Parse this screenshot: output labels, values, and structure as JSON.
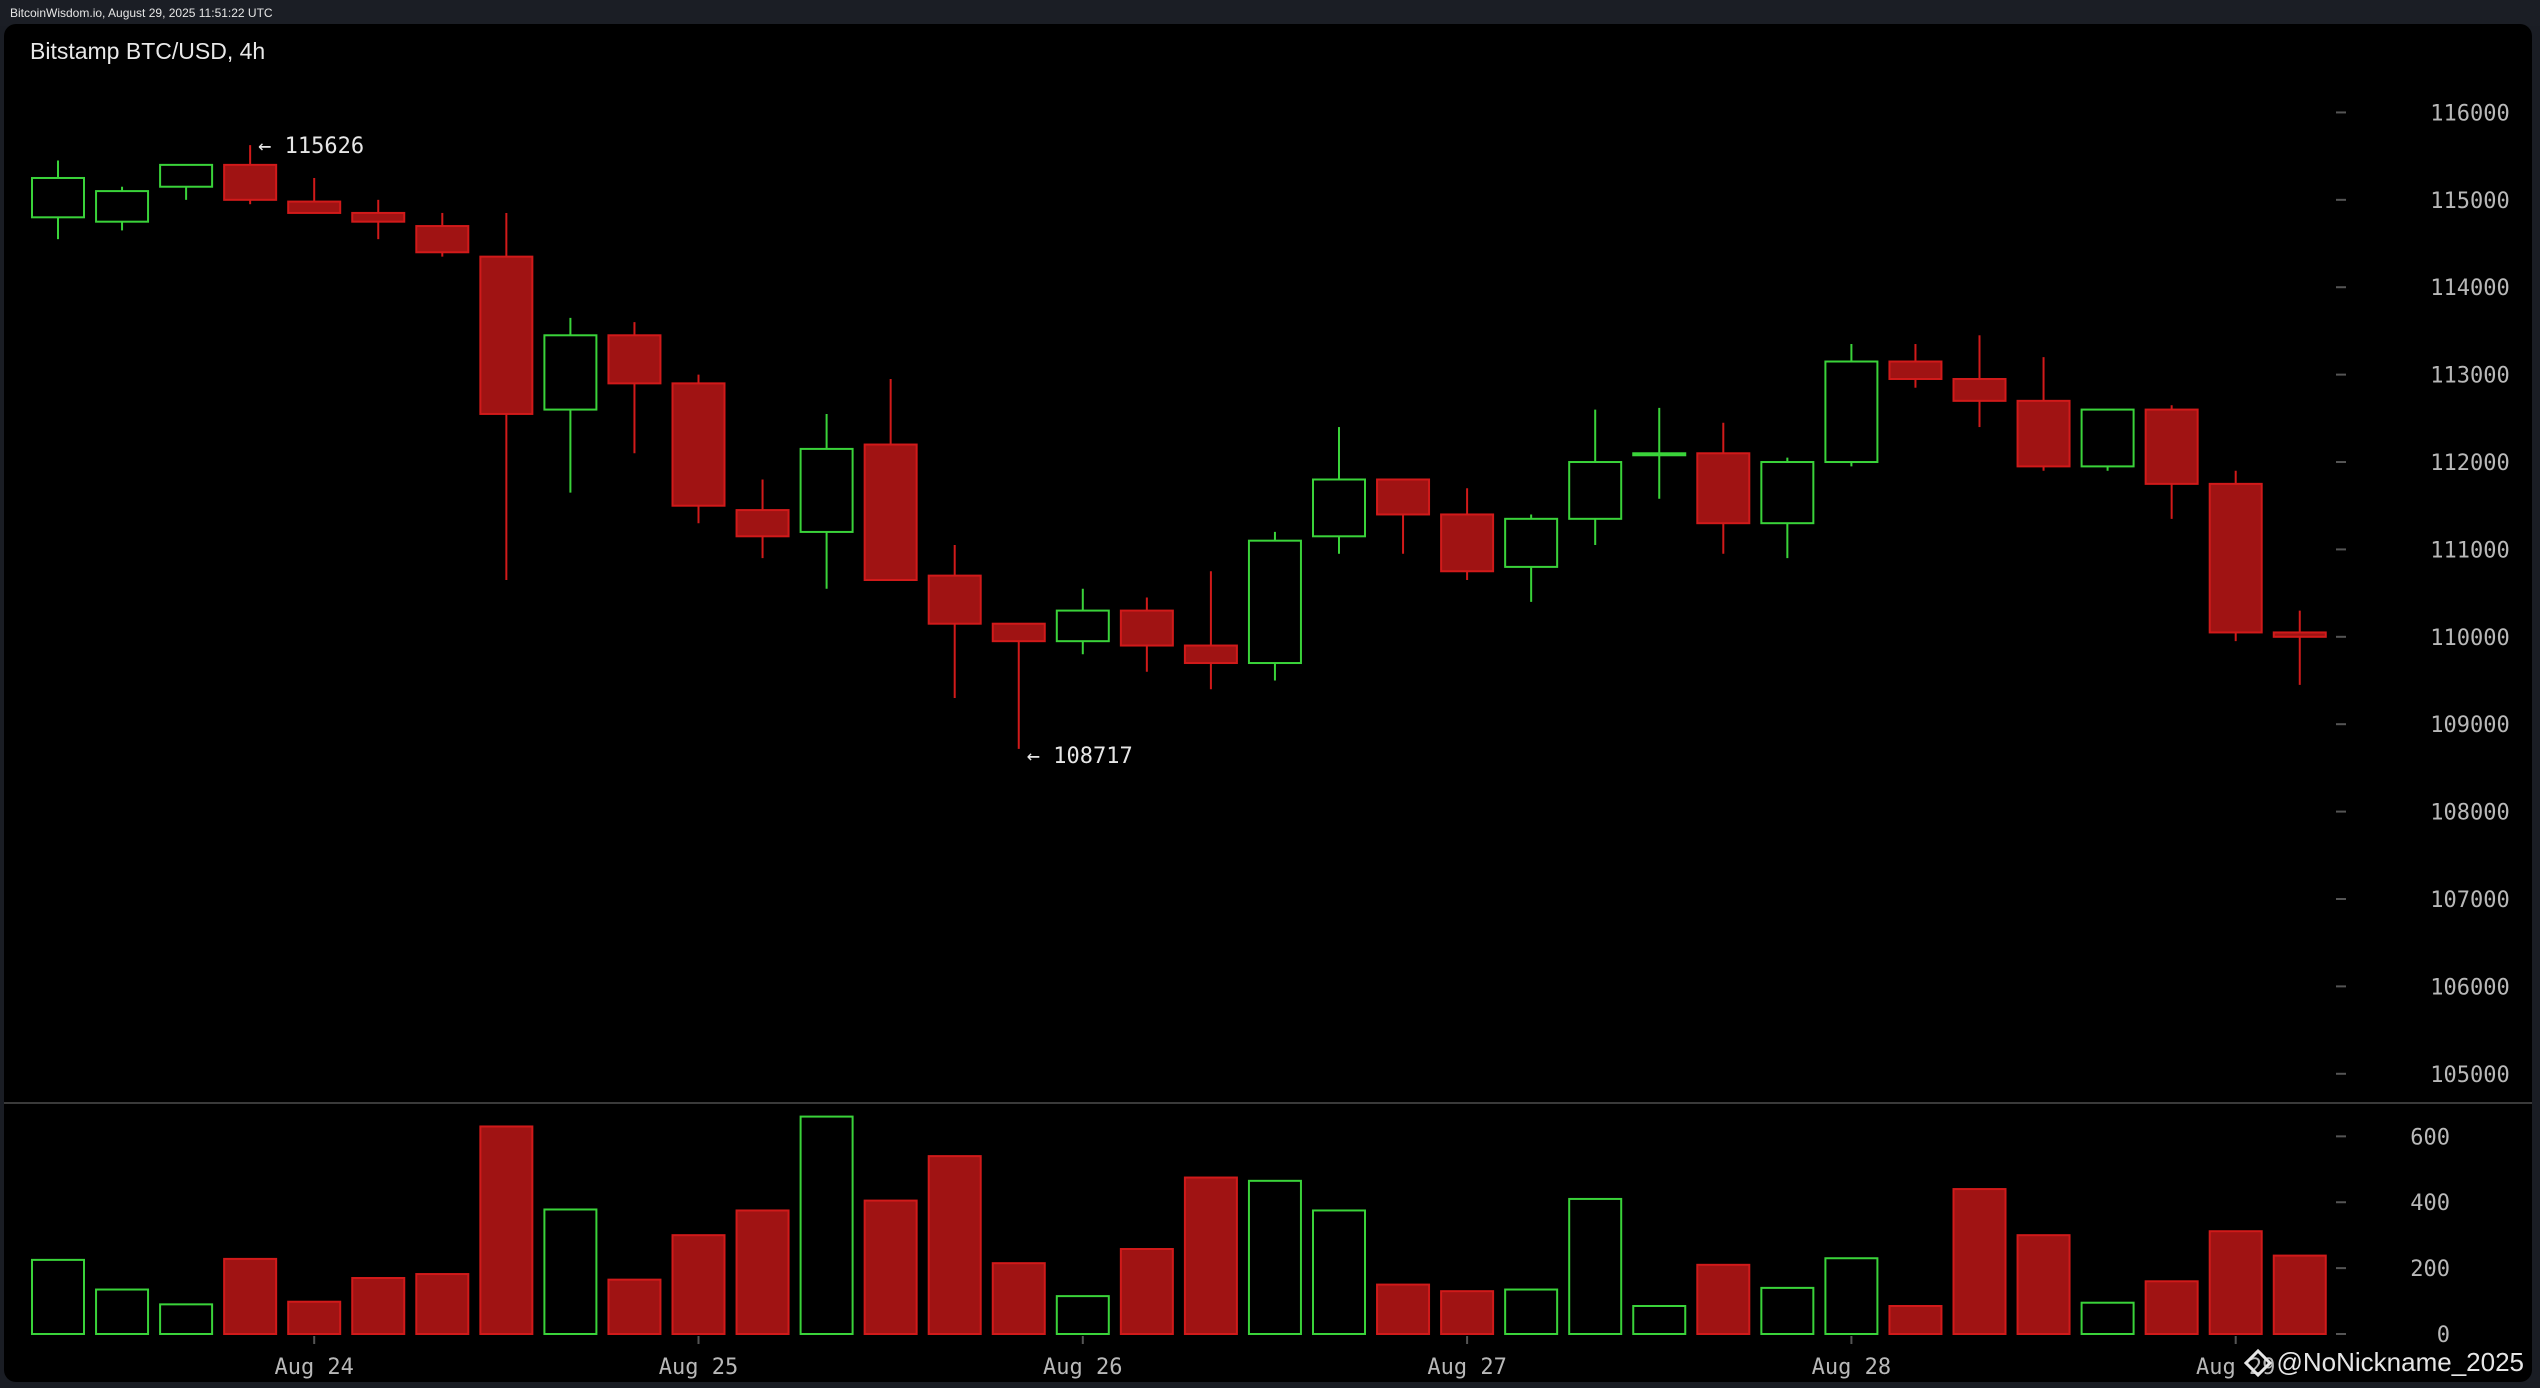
{
  "header": {
    "source": "BitcoinWisdom.io, August 29, 2025 11:51:22 UTC",
    "title": "Bitstamp BTC/USD, 4h"
  },
  "watermark": "@NoNickname_2025",
  "colors": {
    "up": "#3ad33a",
    "down": "#a01313",
    "down_border": "#d11a1a",
    "axis_text": "#b8b8b8",
    "background": "#000000"
  },
  "chart_data": {
    "type": "candlestick",
    "title": "Bitstamp BTC/USD, 4h",
    "x_ticks": [
      "Aug 24",
      "Aug 25",
      "Aug 26",
      "Aug 27",
      "Aug 28",
      "Aug 29"
    ],
    "x_tick_candle_index": [
      4,
      10,
      16,
      22,
      28,
      34
    ],
    "price_axis": {
      "ticks": [
        105000,
        106000,
        107000,
        108000,
        109000,
        110000,
        111000,
        112000,
        113000,
        114000,
        115000,
        116000
      ],
      "ylim": [
        104700,
        116600
      ]
    },
    "volume_axis": {
      "ticks": [
        0,
        200,
        400,
        600
      ],
      "ylim": [
        0,
        680
      ]
    },
    "annotations": [
      {
        "text": "← 115626",
        "candle_index": 3,
        "price": 115626
      },
      {
        "text": "← 108717",
        "candle_index": 15,
        "price": 108717
      }
    ],
    "candles": [
      {
        "o": 114800,
        "h": 115450,
        "l": 114550,
        "c": 115250,
        "v": 225
      },
      {
        "o": 114750,
        "h": 115150,
        "l": 114650,
        "c": 115100,
        "v": 135
      },
      {
        "o": 115150,
        "h": 115400,
        "l": 115000,
        "c": 115400,
        "v": 90
      },
      {
        "o": 115400,
        "h": 115626,
        "l": 114950,
        "c": 115000,
        "v": 228
      },
      {
        "o": 114980,
        "h": 115250,
        "l": 114850,
        "c": 114850,
        "v": 98
      },
      {
        "o": 114850,
        "h": 115000,
        "l": 114550,
        "c": 114750,
        "v": 170
      },
      {
        "o": 114700,
        "h": 114850,
        "l": 114350,
        "c": 114400,
        "v": 182
      },
      {
        "o": 114350,
        "h": 114850,
        "l": 110650,
        "c": 112550,
        "v": 630
      },
      {
        "o": 112600,
        "h": 113650,
        "l": 111650,
        "c": 113450,
        "v": 378
      },
      {
        "o": 113450,
        "h": 113600,
        "l": 112100,
        "c": 112900,
        "v": 165
      },
      {
        "o": 112900,
        "h": 113000,
        "l": 111300,
        "c": 111500,
        "v": 300
      },
      {
        "o": 111450,
        "h": 111800,
        "l": 110900,
        "c": 111150,
        "v": 375
      },
      {
        "o": 111200,
        "h": 112550,
        "l": 110550,
        "c": 112150,
        "v": 660
      },
      {
        "o": 112200,
        "h": 112950,
        "l": 110650,
        "c": 110650,
        "v": 405
      },
      {
        "o": 110700,
        "h": 111050,
        "l": 109300,
        "c": 110150,
        "v": 540
      },
      {
        "o": 110150,
        "h": 110150,
        "l": 108717,
        "c": 109950,
        "v": 215
      },
      {
        "o": 109950,
        "h": 110550,
        "l": 109800,
        "c": 110300,
        "v": 115
      },
      {
        "o": 110300,
        "h": 110450,
        "l": 109600,
        "c": 109900,
        "v": 258
      },
      {
        "o": 109900,
        "h": 110750,
        "l": 109400,
        "c": 109700,
        "v": 475
      },
      {
        "o": 109700,
        "h": 111200,
        "l": 109500,
        "c": 111100,
        "v": 465
      },
      {
        "o": 111150,
        "h": 112400,
        "l": 110950,
        "c": 111800,
        "v": 375
      },
      {
        "o": 111800,
        "h": 111800,
        "l": 110950,
        "c": 111400,
        "v": 150
      },
      {
        "o": 111400,
        "h": 111700,
        "l": 110650,
        "c": 110750,
        "v": 130
      },
      {
        "o": 110800,
        "h": 111400,
        "l": 110400,
        "c": 111350,
        "v": 135
      },
      {
        "o": 111350,
        "h": 112600,
        "l": 111050,
        "c": 112000,
        "v": 410
      },
      {
        "o": 112080,
        "h": 112620,
        "l": 111580,
        "c": 112100,
        "v": 85
      },
      {
        "o": 112100,
        "h": 112450,
        "l": 110950,
        "c": 111300,
        "v": 210
      },
      {
        "o": 111300,
        "h": 112050,
        "l": 110900,
        "c": 112000,
        "v": 140
      },
      {
        "o": 112000,
        "h": 113350,
        "l": 111950,
        "c": 113150,
        "v": 230
      },
      {
        "o": 113150,
        "h": 113350,
        "l": 112850,
        "c": 112950,
        "v": 85
      },
      {
        "o": 112950,
        "h": 113450,
        "l": 112400,
        "c": 112700,
        "v": 440
      },
      {
        "o": 112700,
        "h": 113200,
        "l": 111900,
        "c": 111950,
        "v": 300
      },
      {
        "o": 111950,
        "h": 112600,
        "l": 111900,
        "c": 112600,
        "v": 95
      },
      {
        "o": 112600,
        "h": 112650,
        "l": 111350,
        "c": 111750,
        "v": 160
      },
      {
        "o": 111750,
        "h": 111900,
        "l": 109950,
        "c": 110050,
        "v": 312
      },
      {
        "o": 110050,
        "h": 110300,
        "l": 109450,
        "c": 110000,
        "v": 238
      }
    ]
  }
}
